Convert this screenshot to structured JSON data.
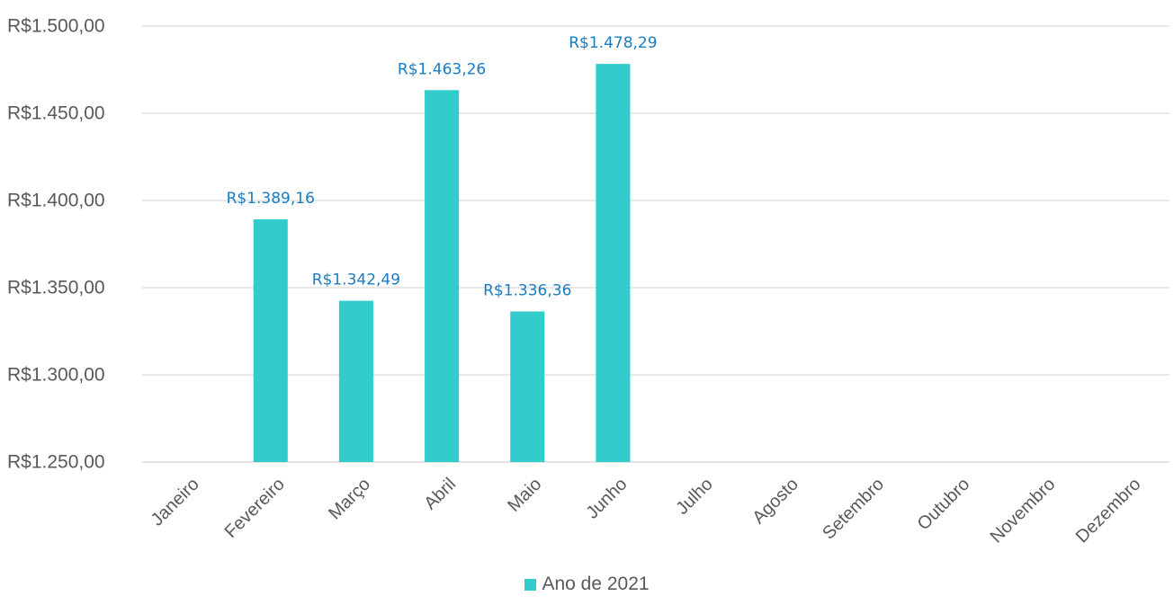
{
  "colors": {
    "bar": "#33cccc",
    "grid": "#d9d9d9",
    "tick_text": "#595959",
    "data_label": "#1a7cc0"
  },
  "legend": {
    "label": "Ano de 2021"
  },
  "chart_data": {
    "type": "bar",
    "title": "",
    "xlabel": "",
    "ylabel": "",
    "ylim": [
      1250,
      1500
    ],
    "ytick_values": [
      1250,
      1300,
      1350,
      1400,
      1450,
      1500
    ],
    "ytick_labels": [
      "R$1.250,00",
      "R$1.300,00",
      "R$1.350,00",
      "R$1.400,00",
      "R$1.450,00",
      "R$1.500,00"
    ],
    "categories": [
      "Janeiro",
      "Fevereiro",
      "Março",
      "Abril",
      "Maio",
      "Junho",
      "Julho",
      "Agosto",
      "Setembro",
      "Outubro",
      "Novembro",
      "Dezembro"
    ],
    "grid": true,
    "legend_position": "bottom",
    "series": [
      {
        "name": "Ano de 2021",
        "values": [
          null,
          1389.16,
          1342.49,
          1463.26,
          1336.36,
          1478.29,
          null,
          null,
          null,
          null,
          null,
          null
        ],
        "data_labels": [
          null,
          "R$1.389,16",
          "R$1.342,49",
          "R$1.463,26",
          "R$1.336,36",
          "R$1.478,29",
          null,
          null,
          null,
          null,
          null,
          null
        ]
      }
    ]
  }
}
